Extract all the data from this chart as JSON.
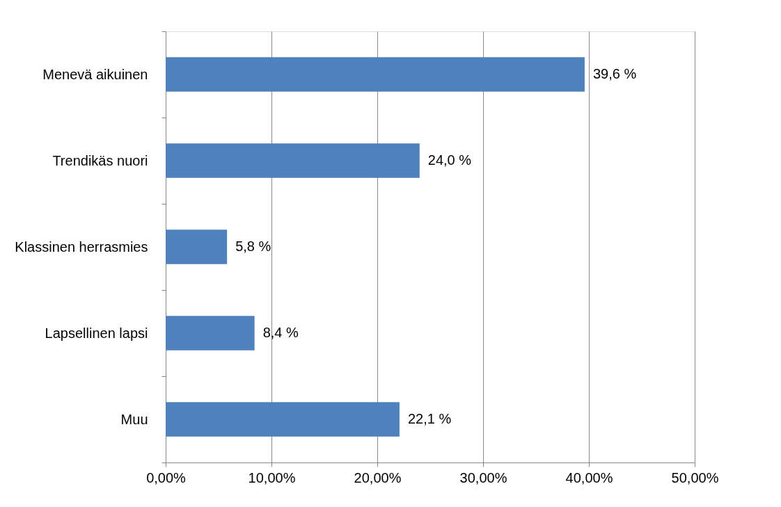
{
  "chart_data": {
    "type": "bar",
    "orientation": "horizontal",
    "categories": [
      "Menevä aikuinen",
      "Trendikäs nuori",
      "Klassinen herrasmies",
      "Lapsellinen lapsi",
      "Muu"
    ],
    "values": [
      39.6,
      24.0,
      5.8,
      8.4,
      22.1
    ],
    "value_labels": [
      "39,6 %",
      "24,0 %",
      "5,8 %",
      "8,4 %",
      "22,1 %"
    ],
    "color": "#4f81bd",
    "xlim": [
      0,
      50
    ],
    "xticks": [
      {
        "value": 0,
        "label": "0,00%"
      },
      {
        "value": 10,
        "label": "10,00%"
      },
      {
        "value": 20,
        "label": "20,00%"
      },
      {
        "value": 30,
        "label": "30,00%"
      },
      {
        "value": 40,
        "label": "40,00%"
      },
      {
        "value": 50,
        "label": "50,00%"
      }
    ],
    "grid": "x"
  }
}
